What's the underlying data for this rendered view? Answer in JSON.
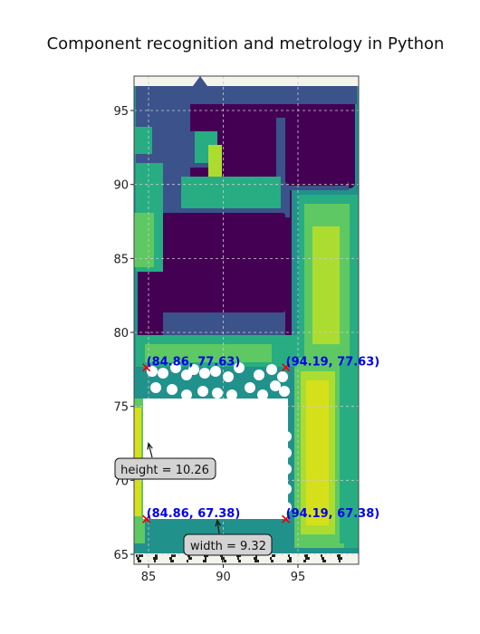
{
  "chart_data": {
    "type": "contour",
    "title": "Component recognition and metrology in Python",
    "xlabel": "",
    "ylabel": "",
    "xlim": [
      84,
      89.2
    ],
    "ylim": [
      64.6,
      97.3
    ],
    "x_ticks": [
      85,
      90,
      95
    ],
    "y_ticks": [
      65,
      70,
      75,
      80,
      85,
      90,
      95
    ],
    "grid": true,
    "colormap": [
      "#440154",
      "#3b528b",
      "#21918c",
      "#27ad81",
      "#5ec962",
      "#addc30",
      "#d6e01a"
    ],
    "corners": [
      {
        "x": 84.86,
        "y": 77.63,
        "label": "(84.86, 77.63)"
      },
      {
        "x": 94.19,
        "y": 77.63,
        "label": "(94.19, 77.63)"
      },
      {
        "x": 84.86,
        "y": 67.38,
        "label": "(84.86, 67.38)"
      },
      {
        "x": 94.19,
        "y": 67.38,
        "label": "(94.19, 67.38)"
      }
    ],
    "annotations": [
      {
        "text": "height = 10.26",
        "point": [
          85,
          72.5
        ]
      },
      {
        "text": "width = 9.32",
        "point": [
          89.6,
          67.3
        ]
      }
    ]
  }
}
